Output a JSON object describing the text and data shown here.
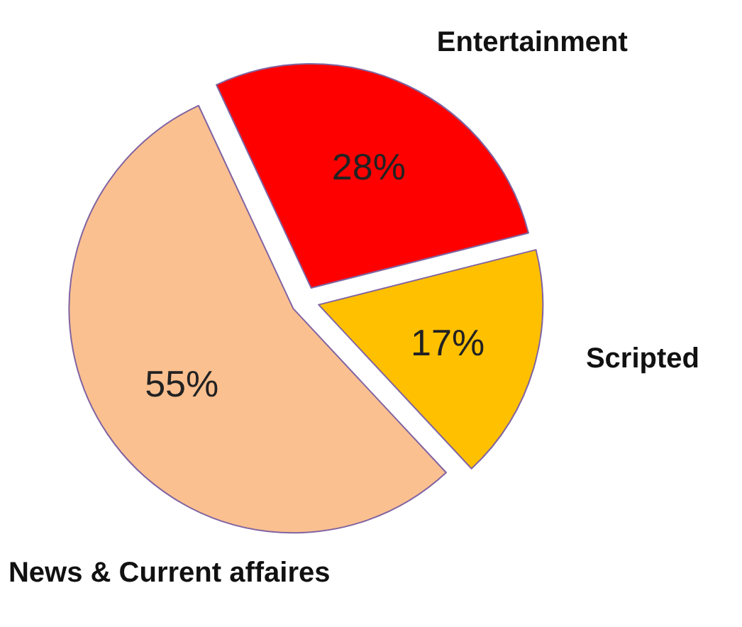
{
  "chart_data": {
    "type": "pie",
    "categories": [
      "Entertainment",
      "Scripted",
      "News & Current affaires"
    ],
    "values": [
      28,
      17,
      55
    ],
    "colors": [
      "#ff0000",
      "#ffc000",
      "#fac090"
    ],
    "value_labels": [
      "28%",
      "17%",
      "55%"
    ]
  }
}
